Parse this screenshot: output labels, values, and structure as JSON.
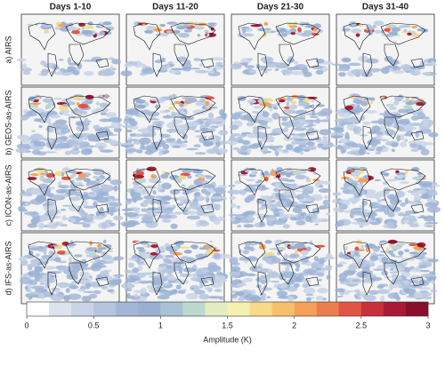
{
  "columns": [
    "Days 1-10",
    "Days 11-20",
    "Days 21-30",
    "Days 31-40"
  ],
  "rows": [
    "a) AIRS",
    "b) GEOS-as-AIRS",
    "c) ICON-as-AIRS",
    "d) IFS-as-AIRS"
  ],
  "colorbar": {
    "label": "Amplitude (K)",
    "lim": [
      0,
      3
    ],
    "ticks": [
      0,
      0.5,
      1,
      1.5,
      2,
      2.5,
      3
    ],
    "colors": [
      "#ffffff",
      "#dde3ee",
      "#c9d3e6",
      "#b5c5df",
      "#a3b6d8",
      "#99b0d3",
      "#a7c2d4",
      "#bcd8cf",
      "#e2edc0",
      "#f5f0b0",
      "#f9d98a",
      "#f8bf6a",
      "#f4a05a",
      "#ec7e4e",
      "#df5644",
      "#c8303a",
      "#a81b34",
      "#8a0f2c"
    ]
  }
}
